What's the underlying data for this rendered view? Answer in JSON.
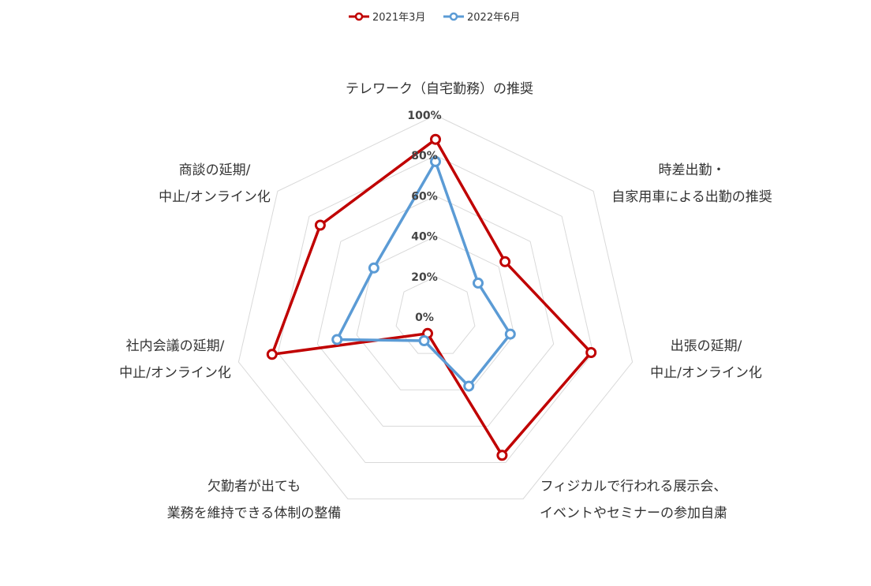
{
  "chart_data": {
    "type": "radar",
    "title": "",
    "categories": [
      [
        "テレワーク（自宅勤務）の推奨"
      ],
      [
        "時差出勤・",
        "自家用車による出勤の推奨"
      ],
      [
        "出張の延期/",
        "中止/オンライン化"
      ],
      [
        "フィジカルで行われる展示会、",
        "イベントやセミナーの参加自粛"
      ],
      [
        "欠勤者が出ても",
        "業務を維持できる体制の整備"
      ],
      [
        "社内会議の延期/",
        "中止/オンライン化"
      ],
      [
        "商談の延期/",
        "中止/オンライン化"
      ]
    ],
    "series": [
      {
        "name": "2021年3月",
        "color": "#c00000",
        "values": [
          88,
          44,
          79,
          76,
          9,
          83,
          73
        ]
      },
      {
        "name": "2022年6月",
        "color": "#5b9bd5",
        "values": [
          77,
          27,
          38,
          38,
          13,
          50,
          39
        ]
      }
    ],
    "r_ticks": [
      "0%",
      "20%",
      "40%",
      "60%",
      "80%",
      "100%"
    ],
    "r_range": [
      0,
      100
    ],
    "grid": true,
    "legend_position": "top"
  }
}
